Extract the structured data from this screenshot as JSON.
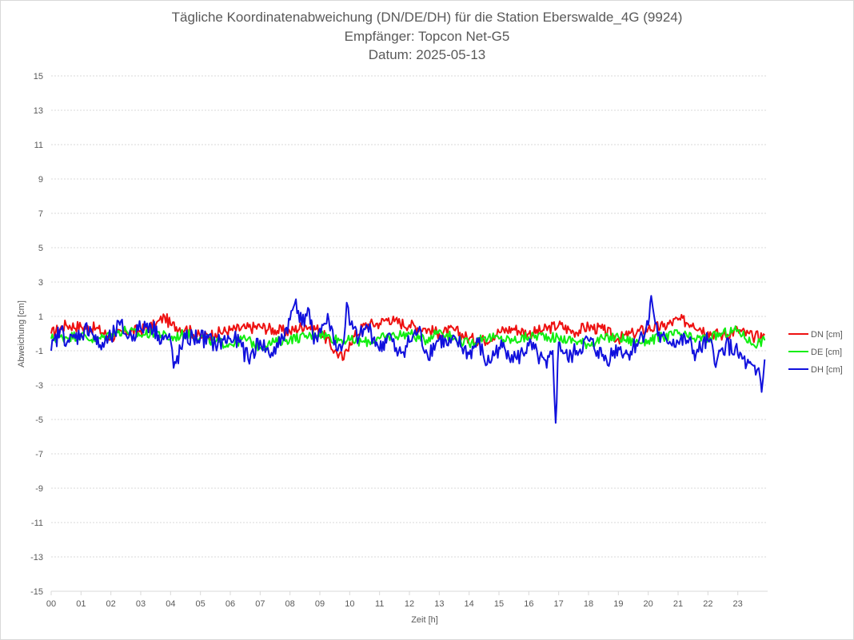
{
  "chart_data": {
    "type": "line",
    "title": "Tägliche Koordinatenabweichung (DN/DE/DH) für die Station Eberswalde_4G (9924)",
    "subtitle_receiver": "Empfänger: Topcon Net-G5",
    "subtitle_date": "Datum: 2025-05-13",
    "xlabel": "Zeit [h]",
    "ylabel": "Abweichung [cm]",
    "xlim": [
      0,
      24
    ],
    "ylim": [
      -15,
      15
    ],
    "grid": true,
    "legend_position": "right",
    "x_tick_labels": [
      "00",
      "01",
      "02",
      "03",
      "04",
      "05",
      "06",
      "07",
      "08",
      "09",
      "10",
      "11",
      "12",
      "13",
      "14",
      "15",
      "16",
      "17",
      "18",
      "19",
      "20",
      "21",
      "22",
      "23"
    ],
    "y_ticks": [
      15,
      13,
      11,
      9,
      7,
      5,
      3,
      1,
      -1,
      -3,
      -5,
      -7,
      -9,
      -11,
      -13,
      -15
    ],
    "series": [
      {
        "name": "DN [cm]",
        "color": "#ee1111",
        "x": [
          0,
          0.5,
          1,
          1.5,
          2,
          2.5,
          3,
          3.5,
          3.8,
          4,
          4.5,
          5,
          5.5,
          6,
          6.5,
          7,
          7.5,
          8,
          8.5,
          9,
          9.5,
          9.8,
          10,
          10.5,
          11,
          11.3,
          11.5,
          12,
          12.5,
          13,
          13.5,
          14,
          14.5,
          15,
          15.5,
          16,
          16.5,
          17,
          17.5,
          18,
          18.5,
          19,
          19.5,
          20,
          20.5,
          21,
          21.5,
          22,
          22.5,
          23,
          23.5,
          23.9
        ],
        "values": [
          0.0,
          0.5,
          0.4,
          0.3,
          -0.2,
          0.1,
          0.2,
          0.5,
          1.0,
          0.5,
          0.3,
          -0.2,
          0.0,
          0.2,
          0.3,
          0.4,
          0.2,
          0.1,
          0.5,
          0.2,
          -1.0,
          -1.5,
          -0.5,
          0.5,
          0.6,
          0.9,
          0.7,
          0.5,
          0.3,
          0.0,
          0.2,
          -0.3,
          -0.4,
          0.1,
          0.3,
          0.0,
          0.2,
          0.5,
          0.1,
          0.4,
          0.2,
          -0.3,
          0.0,
          0.3,
          0.4,
          0.8,
          0.6,
          0.1,
          -0.1,
          0.2,
          -0.2,
          -0.1
        ]
      },
      {
        "name": "DE [cm]",
        "color": "#11ee11",
        "x": [
          0,
          0.5,
          1,
          1.5,
          2,
          2.5,
          3,
          3.5,
          4,
          4.5,
          5,
          5.5,
          6,
          6.5,
          7,
          7.5,
          8,
          8.5,
          9,
          9.5,
          10,
          10.5,
          11,
          11.5,
          12,
          12.5,
          13,
          13.5,
          14,
          14.5,
          15,
          15.5,
          16,
          16.5,
          17,
          17.5,
          18,
          18.5,
          19,
          19.5,
          20,
          20.5,
          21,
          21.5,
          22,
          22.5,
          23,
          23.5,
          23.9
        ],
        "values": [
          -0.3,
          -0.2,
          -0.1,
          -0.4,
          0.0,
          0.2,
          -0.1,
          0.1,
          -0.3,
          0.0,
          -0.2,
          -0.5,
          -0.6,
          -0.3,
          -0.8,
          -0.5,
          -0.3,
          -0.2,
          0.0,
          -0.3,
          -0.4,
          -0.5,
          -0.3,
          -0.1,
          0.0,
          -0.4,
          0.2,
          -0.3,
          -0.6,
          -0.2,
          -0.3,
          -0.4,
          -0.2,
          -0.1,
          -0.3,
          -0.4,
          -0.6,
          -0.3,
          -0.2,
          -0.5,
          -0.4,
          -0.2,
          0.0,
          -0.3,
          -0.3,
          0.0,
          0.2,
          -0.6,
          -0.4
        ]
      },
      {
        "name": "DH [cm]",
        "color": "#1111dd",
        "x": [
          0,
          0.3,
          0.6,
          1,
          1.3,
          1.6,
          2,
          2.3,
          2.6,
          3,
          3.3,
          3.6,
          4,
          4.1,
          4.5,
          5,
          5.5,
          6,
          6.3,
          6.6,
          7,
          7.3,
          7.6,
          8,
          8.2,
          8.4,
          8.6,
          8.8,
          9,
          9.3,
          9.6,
          9.8,
          9.9,
          10,
          10.3,
          10.6,
          10.9,
          11,
          11.3,
          11.6,
          12,
          12.3,
          12.6,
          13,
          13.3,
          13.6,
          14,
          14.3,
          14.6,
          15,
          15.3,
          15.6,
          16,
          16.3,
          16.6,
          16.8,
          16.9,
          17,
          17.3,
          17.6,
          18,
          18.3,
          18.6,
          19,
          19.3,
          19.6,
          20,
          20.1,
          20.2,
          20.4,
          20.6,
          21,
          21.3,
          21.6,
          22,
          22.3,
          22.6,
          23,
          23.3,
          23.6,
          23.7,
          23.8,
          23.9
        ],
        "values": [
          -1.0,
          0.2,
          -0.5,
          0.0,
          0.4,
          -0.8,
          -0.3,
          0.5,
          -0.2,
          0.3,
          0.6,
          -0.1,
          -0.4,
          -2.0,
          -0.3,
          -0.2,
          -0.6,
          -0.3,
          -0.5,
          -1.5,
          -0.4,
          -1.2,
          -0.8,
          0.8,
          2.0,
          0.5,
          1.5,
          -0.6,
          0.3,
          0.8,
          -1.0,
          -0.5,
          1.8,
          0.5,
          -0.3,
          0.4,
          -0.5,
          -1.0,
          0.0,
          -1.3,
          -0.5,
          0.2,
          -1.2,
          -0.3,
          -0.7,
          -0.5,
          -1.2,
          -0.5,
          -1.8,
          -0.8,
          -1.0,
          -1.5,
          -0.7,
          -1.3,
          -2.0,
          -1.0,
          -5.2,
          -0.5,
          -1.5,
          -1.0,
          -0.4,
          -1.0,
          -1.5,
          -0.8,
          -1.2,
          -0.6,
          0.5,
          2.2,
          1.0,
          -0.5,
          -0.3,
          -0.5,
          -0.4,
          -1.2,
          -0.4,
          -1.6,
          -0.6,
          -1.2,
          -1.8,
          -2.4,
          -2.0,
          -3.4,
          -1.5
        ]
      }
    ]
  }
}
